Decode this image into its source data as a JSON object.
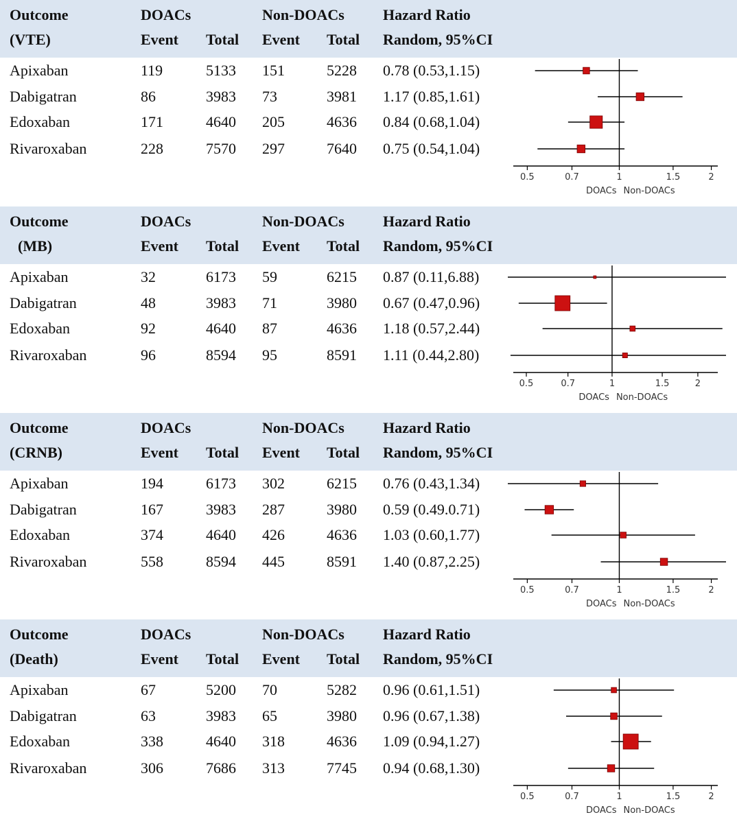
{
  "headers": {
    "outcome": "Outcome",
    "doacs": "DOACs",
    "non_doacs": "Non-DOACs",
    "hazard_ratio": "Hazard Ratio",
    "event": "Event",
    "total": "Total",
    "random_ci": "Random, 95%CI"
  },
  "direction_labels": {
    "left": "DOACs",
    "right": "Non-DOACs"
  },
  "colors": {
    "header_band": "#dbe5f1",
    "marker": "#cc1111",
    "line": "#000000"
  },
  "chart_data": [
    {
      "type": "forest",
      "outcome_label": "(VTE)",
      "xlim": [
        0.45,
        2.1
      ],
      "ticks": [
        "0.5",
        "0.7",
        "1",
        "1.5",
        "2"
      ],
      "rows": [
        {
          "drug": "Apixaban",
          "doac_event": "119",
          "doac_total": "5133",
          "non_event": "151",
          "non_total": "5228",
          "hr_text": "0.78 (0.53,1.15)",
          "hr": 0.78,
          "lo": 0.53,
          "hi": 1.15,
          "weight": 0.35
        },
        {
          "drug": "Dabigatran",
          "doac_event": "86",
          "doac_total": "3983",
          "non_event": "73",
          "non_total": "3981",
          "hr_text": "1.17 (0.85,1.61)",
          "hr": 1.17,
          "lo": 0.85,
          "hi": 1.61,
          "weight": 0.45
        },
        {
          "drug": "Edoxaban",
          "doac_event": "171",
          "doac_total": "4640",
          "non_event": "205",
          "non_total": "4636",
          "hr_text": "0.84 (0.68,1.04)",
          "hr": 0.84,
          "lo": 0.68,
          "hi": 1.04,
          "weight": 0.8
        },
        {
          "drug": "Rivaroxaban",
          "doac_event": "228",
          "doac_total": "7570",
          "non_event": "297",
          "non_total": "7640",
          "hr_text": "0.75 (0.54,1.04)",
          "hr": 0.75,
          "lo": 0.54,
          "hi": 1.04,
          "weight": 0.45
        }
      ]
    },
    {
      "type": "forest",
      "outcome_label": "(MB)",
      "xlim": [
        0.45,
        2.35
      ],
      "ticks": [
        "0.5",
        "0.7",
        "1",
        "1.5",
        "2"
      ],
      "rows": [
        {
          "drug": "Apixaban",
          "doac_event": "32",
          "doac_total": "6173",
          "non_event": "59",
          "non_total": "6215",
          "hr_text": "0.87 (0.11,6.88)",
          "hr": 0.87,
          "lo": 0.11,
          "hi": 6.88,
          "weight": 0.05
        },
        {
          "drug": "Dabigatran",
          "doac_event": "48",
          "doac_total": "3983",
          "non_event": "71",
          "non_total": "3980",
          "hr_text": "0.67 (0.47,0.96)",
          "hr": 0.67,
          "lo": 0.47,
          "hi": 0.96,
          "weight": 1.0
        },
        {
          "drug": "Edoxaban",
          "doac_event": "92",
          "doac_total": "4640",
          "non_event": "87",
          "non_total": "4636",
          "hr_text": "1.18 (0.57,2.44)",
          "hr": 1.18,
          "lo": 0.57,
          "hi": 2.44,
          "weight": 0.25
        },
        {
          "drug": "Rivaroxaban",
          "doac_event": "96",
          "doac_total": "8594",
          "non_event": "95",
          "non_total": "8591",
          "hr_text": "1.11 (0.44,2.80)",
          "hr": 1.11,
          "lo": 0.44,
          "hi": 2.8,
          "weight": 0.22
        }
      ]
    },
    {
      "type": "forest",
      "outcome_label": "(CRNB)",
      "xlim": [
        0.45,
        2.1
      ],
      "ticks": [
        "0.5",
        "0.7",
        "1",
        "1.5",
        "2"
      ],
      "rows": [
        {
          "drug": "Apixaban",
          "doac_event": "194",
          "doac_total": "6173",
          "non_event": "302",
          "non_total": "6215",
          "hr_text": "0.76 (0.43,1.34)",
          "hr": 0.76,
          "lo": 0.43,
          "hi": 1.34,
          "weight": 0.28
        },
        {
          "drug": "Dabigatran",
          "doac_event": "167",
          "doac_total": "3983",
          "non_event": "287",
          "non_total": "3980",
          "hr_text": "0.59 (0.49.0.71)",
          "hr": 0.59,
          "lo": 0.49,
          "hi": 0.71,
          "weight": 0.5
        },
        {
          "drug": "Edoxaban",
          "doac_event": "374",
          "doac_total": "4640",
          "non_event": "426",
          "non_total": "4636",
          "hr_text": "1.03 (0.60,1.77)",
          "hr": 1.03,
          "lo": 0.6,
          "hi": 1.77,
          "weight": 0.3
        },
        {
          "drug": "Rivaroxaban",
          "doac_event": "558",
          "doac_total": "8594",
          "non_event": "445",
          "non_total": "8591",
          "hr_text": "1.40 (0.87,2.25)",
          "hr": 1.4,
          "lo": 0.87,
          "hi": 2.25,
          "weight": 0.4
        }
      ]
    },
    {
      "type": "forest",
      "outcome_label": "(Death)",
      "xlim": [
        0.45,
        2.1
      ],
      "ticks": [
        "0.5",
        "0.7",
        "1",
        "1.5",
        "2"
      ],
      "rows": [
        {
          "drug": "Apixaban",
          "doac_event": "67",
          "doac_total": "5200",
          "non_event": "70",
          "non_total": "5282",
          "hr_text": "0.96 (0.61,1.51)",
          "hr": 0.96,
          "lo": 0.61,
          "hi": 1.51,
          "weight": 0.25
        },
        {
          "drug": "Dabigatran",
          "doac_event": "63",
          "doac_total": "3983",
          "non_event": "65",
          "non_total": "3980",
          "hr_text": "0.96 (0.67,1.38)",
          "hr": 0.96,
          "lo": 0.67,
          "hi": 1.38,
          "weight": 0.35
        },
        {
          "drug": "Edoxaban",
          "doac_event": "338",
          "doac_total": "4640",
          "non_event": "318",
          "non_total": "4636",
          "hr_text": "1.09 (0.94,1.27)",
          "hr": 1.09,
          "lo": 0.94,
          "hi": 1.27,
          "weight": 1.0
        },
        {
          "drug": "Rivaroxaban",
          "doac_event": "306",
          "doac_total": "7686",
          "non_event": "313",
          "non_total": "7745",
          "hr_text": "0.94 (0.68,1.30)",
          "hr": 0.94,
          "lo": 0.68,
          "hi": 1.3,
          "weight": 0.4
        }
      ]
    }
  ]
}
